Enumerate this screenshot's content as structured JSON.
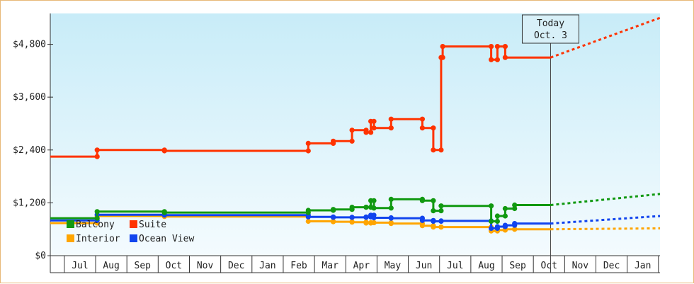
{
  "chart_data": {
    "type": "line",
    "y_ticks": [
      0,
      1200,
      2400,
      3600,
      4800
    ],
    "y_tick_labels": [
      "$0",
      "$1,200",
      "$2,400",
      "$3,600",
      "$4,800"
    ],
    "ylim": [
      0,
      5500
    ],
    "x_months": [
      "Jul",
      "Aug",
      "Sep",
      "Oct",
      "Nov",
      "Dec",
      "Jan",
      "Feb",
      "Mar",
      "Apr",
      "May",
      "Jun",
      "Jul",
      "Aug",
      "Sep",
      "Oct",
      "Nov",
      "Dec",
      "Jan"
    ],
    "x_range": [
      -0.45,
      19.05
    ],
    "today": {
      "label_line1": "Today",
      "label_line2": "Oct. 3",
      "x": 15.55
    },
    "series": [
      {
        "name": "Suite",
        "color": "#ff3300",
        "points": [
          [
            -0.45,
            2250
          ],
          [
            1.05,
            2250
          ],
          [
            1.05,
            2400
          ],
          [
            3.2,
            2400
          ],
          [
            3.2,
            2380
          ],
          [
            7.8,
            2380
          ],
          [
            7.8,
            2550
          ],
          [
            8.6,
            2550
          ],
          [
            8.6,
            2600
          ],
          [
            9.2,
            2600
          ],
          [
            9.2,
            2850
          ],
          [
            9.65,
            2850
          ],
          [
            9.65,
            2800
          ],
          [
            9.8,
            2800
          ],
          [
            9.8,
            3050
          ],
          [
            9.9,
            3050
          ],
          [
            9.9,
            2900
          ],
          [
            10.45,
            2900
          ],
          [
            10.45,
            3100
          ],
          [
            11.45,
            3100
          ],
          [
            11.45,
            2900
          ],
          [
            11.8,
            2900
          ],
          [
            11.8,
            2400
          ],
          [
            12.05,
            2400
          ],
          [
            12.05,
            4500
          ],
          [
            12.1,
            4500
          ],
          [
            12.1,
            4750
          ],
          [
            13.65,
            4750
          ],
          [
            13.65,
            4450
          ],
          [
            13.85,
            4450
          ],
          [
            13.85,
            4750
          ],
          [
            14.1,
            4750
          ],
          [
            14.1,
            4500
          ],
          [
            15.55,
            4500
          ]
        ],
        "projection": [
          [
            15.55,
            4500
          ],
          [
            19.05,
            5400
          ]
        ]
      },
      {
        "name": "Balcony",
        "color": "#119911",
        "points": [
          [
            -0.45,
            850
          ],
          [
            1.05,
            850
          ],
          [
            1.05,
            1000
          ],
          [
            3.2,
            1000
          ],
          [
            3.2,
            980
          ],
          [
            7.8,
            980
          ],
          [
            7.8,
            1030
          ],
          [
            8.6,
            1030
          ],
          [
            8.6,
            1050
          ],
          [
            9.2,
            1050
          ],
          [
            9.2,
            1100
          ],
          [
            9.65,
            1100
          ],
          [
            9.65,
            1100
          ],
          [
            9.8,
            1100
          ],
          [
            9.8,
            1250
          ],
          [
            9.9,
            1250
          ],
          [
            9.9,
            1080
          ],
          [
            10.45,
            1080
          ],
          [
            10.45,
            1280
          ],
          [
            11.45,
            1280
          ],
          [
            11.45,
            1250
          ],
          [
            11.8,
            1250
          ],
          [
            11.8,
            1020
          ],
          [
            12.05,
            1020
          ],
          [
            12.05,
            1130
          ],
          [
            13.65,
            1130
          ],
          [
            13.65,
            780
          ],
          [
            13.85,
            780
          ],
          [
            13.85,
            900
          ],
          [
            14.1,
            900
          ],
          [
            14.1,
            1070
          ],
          [
            14.4,
            1070
          ],
          [
            14.4,
            1150
          ],
          [
            15.55,
            1150
          ]
        ],
        "projection": [
          [
            15.55,
            1150
          ],
          [
            19.05,
            1400
          ]
        ]
      },
      {
        "name": "Ocean View",
        "color": "#1144ee",
        "points": [
          [
            -0.45,
            800
          ],
          [
            1.05,
            800
          ],
          [
            1.05,
            930
          ],
          [
            3.2,
            930
          ],
          [
            3.2,
            920
          ],
          [
            7.8,
            920
          ],
          [
            7.8,
            880
          ],
          [
            8.6,
            880
          ],
          [
            8.6,
            870
          ],
          [
            9.2,
            870
          ],
          [
            9.2,
            870
          ],
          [
            9.65,
            870
          ],
          [
            9.65,
            880
          ],
          [
            9.8,
            880
          ],
          [
            9.8,
            920
          ],
          [
            9.9,
            920
          ],
          [
            9.9,
            860
          ],
          [
            10.45,
            860
          ],
          [
            10.45,
            850
          ],
          [
            11.45,
            850
          ],
          [
            11.45,
            800
          ],
          [
            11.8,
            800
          ],
          [
            11.8,
            780
          ],
          [
            12.05,
            780
          ],
          [
            12.05,
            790
          ],
          [
            13.65,
            790
          ],
          [
            13.65,
            620
          ],
          [
            13.85,
            620
          ],
          [
            13.85,
            660
          ],
          [
            14.1,
            660
          ],
          [
            14.1,
            690
          ],
          [
            14.4,
            690
          ],
          [
            14.4,
            730
          ],
          [
            15.55,
            730
          ]
        ],
        "projection": [
          [
            15.55,
            730
          ],
          [
            19.05,
            900
          ]
        ]
      },
      {
        "name": "Interior",
        "color": "#ffa500",
        "points": [
          [
            -0.45,
            740
          ],
          [
            1.05,
            740
          ],
          [
            1.05,
            900
          ],
          [
            3.2,
            900
          ],
          [
            3.2,
            890
          ],
          [
            7.8,
            890
          ],
          [
            7.8,
            780
          ],
          [
            8.6,
            780
          ],
          [
            8.6,
            770
          ],
          [
            9.2,
            770
          ],
          [
            9.2,
            760
          ],
          [
            9.65,
            760
          ],
          [
            9.65,
            740
          ],
          [
            9.8,
            740
          ],
          [
            9.8,
            750
          ],
          [
            9.9,
            750
          ],
          [
            9.9,
            750
          ],
          [
            10.45,
            750
          ],
          [
            10.45,
            730
          ],
          [
            11.45,
            730
          ],
          [
            11.45,
            680
          ],
          [
            11.8,
            680
          ],
          [
            11.8,
            650
          ],
          [
            12.05,
            650
          ],
          [
            12.05,
            650
          ],
          [
            13.65,
            650
          ],
          [
            13.65,
            560
          ],
          [
            13.85,
            560
          ],
          [
            13.85,
            580
          ],
          [
            14.1,
            580
          ],
          [
            14.1,
            600
          ],
          [
            14.4,
            600
          ],
          [
            14.4,
            600
          ],
          [
            15.55,
            600
          ]
        ],
        "projection": [
          [
            15.55,
            600
          ],
          [
            19.05,
            620
          ]
        ]
      }
    ],
    "legend": [
      {
        "name": "Balcony",
        "color": "#119911"
      },
      {
        "name": "Suite",
        "color": "#ff3300"
      },
      {
        "name": "Interior",
        "color": "#ffa500"
      },
      {
        "name": "Ocean View",
        "color": "#1144ee"
      }
    ]
  }
}
